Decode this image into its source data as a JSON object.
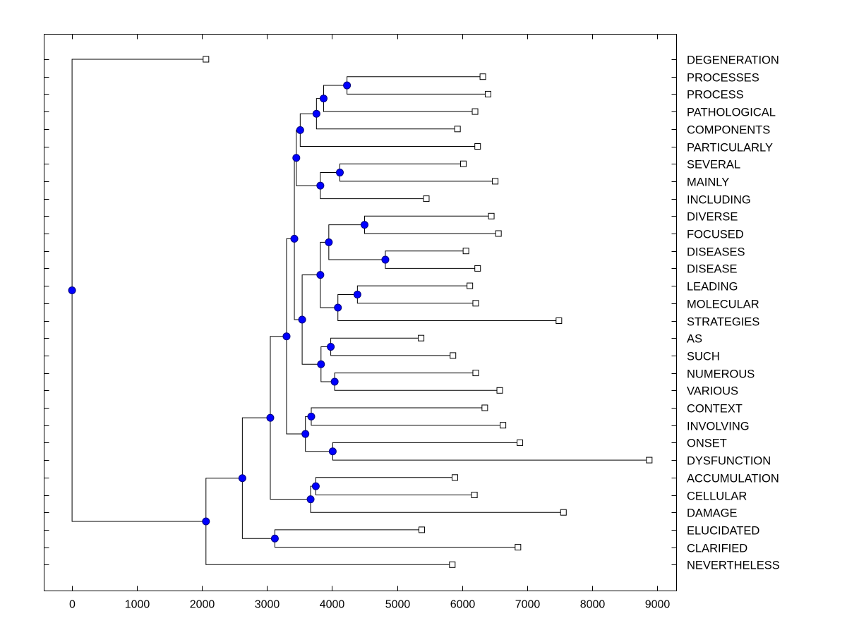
{
  "chart_data": {
    "type": "dendrogram",
    "title": "",
    "xlabel": "",
    "ylabel": "",
    "xlim": [
      -430,
      9300
    ],
    "x_ticks": [
      0,
      1000,
      2000,
      3000,
      4000,
      5000,
      6000,
      7000,
      8000,
      9000
    ],
    "grid": false,
    "colors": {
      "node_fill": "#0000ff",
      "node_stroke": "#000080",
      "leaf_fill": "#ffffff",
      "line": "#000000"
    },
    "leaves": [
      {
        "label": "DEGENERATION",
        "x": 2060
      },
      {
        "label": "PROCESSES",
        "x": 6320
      },
      {
        "label": "PROCESS",
        "x": 6400
      },
      {
        "label": "PATHOLOGICAL",
        "x": 6200
      },
      {
        "label": "COMPONENTS",
        "x": 5930
      },
      {
        "label": "PARTICULARLY",
        "x": 6240
      },
      {
        "label": "SEVERAL",
        "x": 6020
      },
      {
        "label": "MAINLY",
        "x": 6510
      },
      {
        "label": "INCLUDING",
        "x": 5450
      },
      {
        "label": "DIVERSE",
        "x": 6450
      },
      {
        "label": "FOCUSED",
        "x": 6560
      },
      {
        "label": "DISEASES",
        "x": 6060
      },
      {
        "label": "DISEASE",
        "x": 6240
      },
      {
        "label": "LEADING",
        "x": 6120
      },
      {
        "label": "MOLECULAR",
        "x": 6210
      },
      {
        "label": "STRATEGIES",
        "x": 7490
      },
      {
        "label": "AS",
        "x": 5370
      },
      {
        "label": "SUCH",
        "x": 5860
      },
      {
        "label": "NUMEROUS",
        "x": 6210
      },
      {
        "label": "VARIOUS",
        "x": 6580
      },
      {
        "label": "CONTEXT",
        "x": 6350
      },
      {
        "label": "INVOLVING",
        "x": 6630
      },
      {
        "label": "ONSET",
        "x": 6890
      },
      {
        "label": "DYSFUNCTION",
        "x": 8880
      },
      {
        "label": "ACCUMULATION",
        "x": 5890
      },
      {
        "label": "CELLULAR",
        "x": 6190
      },
      {
        "label": "DAMAGE",
        "x": 7560
      },
      {
        "label": "ELUCIDATED",
        "x": 5380
      },
      {
        "label": "CLARIFIED",
        "x": 6860
      },
      {
        "label": "NEVERTHELESS",
        "x": 5850
      }
    ],
    "merges": [
      {
        "x": 4230,
        "children": [
          "PROCESSES",
          "PROCESS"
        ]
      },
      {
        "x": 3870,
        "children": [
          0,
          "PATHOLOGICAL"
        ]
      },
      {
        "x": 3760,
        "children": [
          1,
          "COMPONENTS"
        ]
      },
      {
        "x": 3510,
        "children": [
          2,
          "PARTICULARLY"
        ]
      },
      {
        "x": 4120,
        "children": [
          "SEVERAL",
          "MAINLY"
        ]
      },
      {
        "x": 3820,
        "children": [
          4,
          "INCLUDING"
        ]
      },
      {
        "x": 3450,
        "children": [
          3,
          5
        ]
      },
      {
        "x": 4500,
        "children": [
          "DIVERSE",
          "FOCUSED"
        ]
      },
      {
        "x": 4820,
        "children": [
          "DISEASES",
          "DISEASE"
        ]
      },
      {
        "x": 3950,
        "children": [
          7,
          8
        ]
      },
      {
        "x": 4390,
        "children": [
          "LEADING",
          "MOLECULAR"
        ]
      },
      {
        "x": 4090,
        "children": [
          10,
          "STRATEGIES"
        ]
      },
      {
        "x": 3820,
        "children": [
          9,
          11
        ]
      },
      {
        "x": 3980,
        "children": [
          "AS",
          "SUCH"
        ]
      },
      {
        "x": 4040,
        "children": [
          "NUMEROUS",
          "VARIOUS"
        ]
      },
      {
        "x": 3830,
        "children": [
          13,
          14
        ]
      },
      {
        "x": 3540,
        "children": [
          12,
          15
        ]
      },
      {
        "x": 3420,
        "children": [
          6,
          16
        ]
      },
      {
        "x": 3680,
        "children": [
          "CONTEXT",
          "INVOLVING"
        ]
      },
      {
        "x": 4010,
        "children": [
          "ONSET",
          "DYSFUNCTION"
        ]
      },
      {
        "x": 3590,
        "children": [
          18,
          19
        ]
      },
      {
        "x": 3300,
        "children": [
          17,
          20
        ]
      },
      {
        "x": 3750,
        "children": [
          "ACCUMULATION",
          "CELLULAR"
        ]
      },
      {
        "x": 3670,
        "children": [
          22,
          "DAMAGE"
        ]
      },
      {
        "x": 3050,
        "children": [
          21,
          23
        ]
      },
      {
        "x": 3120,
        "children": [
          "ELUCIDATED",
          "CLARIFIED"
        ]
      },
      {
        "x": 2620,
        "children": [
          24,
          25
        ]
      },
      {
        "x": 2060,
        "children": [
          26,
          "NEVERTHELESS"
        ]
      },
      {
        "x": 0,
        "children": [
          "DEGENERATION",
          27
        ]
      }
    ]
  }
}
